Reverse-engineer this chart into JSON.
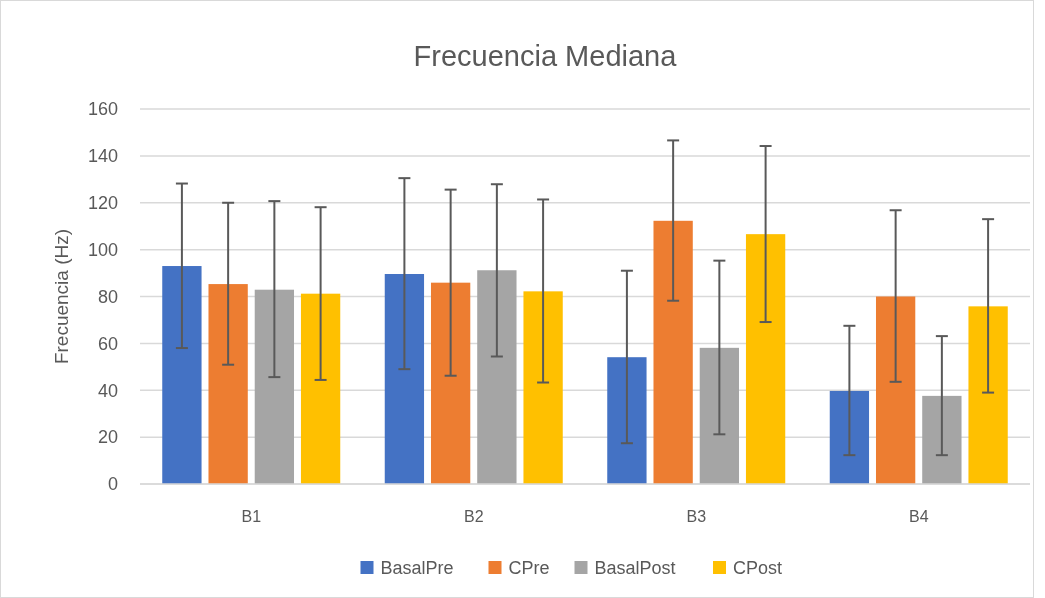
{
  "chart_data": {
    "type": "bar",
    "title": "Frecuencia Mediana",
    "ylabel": "Frecuencia (Hz)",
    "categories": [
      "B1",
      "B2",
      "B3",
      "B4"
    ],
    "series": [
      {
        "name": "BasalPre",
        "color": "#4472c4",
        "values": [
          93,
          89.6,
          54.1,
          39.7
        ],
        "errors": [
          [
            58,
            128.2
          ],
          [
            49,
            130.5
          ],
          [
            17.4,
            91
          ],
          [
            12.3,
            67.5
          ]
        ]
      },
      {
        "name": "CPre",
        "color": "#ed7d31",
        "values": [
          85.3,
          85.9,
          112.3,
          80
        ],
        "errors": [
          [
            50.9,
            120
          ],
          [
            46.2,
            125.6
          ],
          [
            78.2,
            146.6
          ],
          [
            43.6,
            116.8
          ]
        ]
      },
      {
        "name": "BasalPost",
        "color": "#a5a5a5",
        "values": [
          82.9,
          91.2,
          58.1,
          37.6
        ],
        "errors": [
          [
            45.6,
            120.7
          ],
          [
            54.4,
            127.9
          ],
          [
            21.2,
            95.3
          ],
          [
            12.3,
            63.1
          ]
        ]
      },
      {
        "name": "CPost",
        "color": "#ffc000",
        "values": [
          81.2,
          82.2,
          106.6,
          75.8
        ],
        "errors": [
          [
            44.4,
            118.1
          ],
          [
            43.3,
            121.4
          ],
          [
            69.1,
            144.2
          ],
          [
            39,
            113
          ]
        ]
      }
    ],
    "ylim": [
      0,
      160
    ],
    "yticks": [
      0,
      20,
      40,
      60,
      80,
      100,
      120,
      140,
      160
    ],
    "grid": "y",
    "legend": "bottom"
  }
}
